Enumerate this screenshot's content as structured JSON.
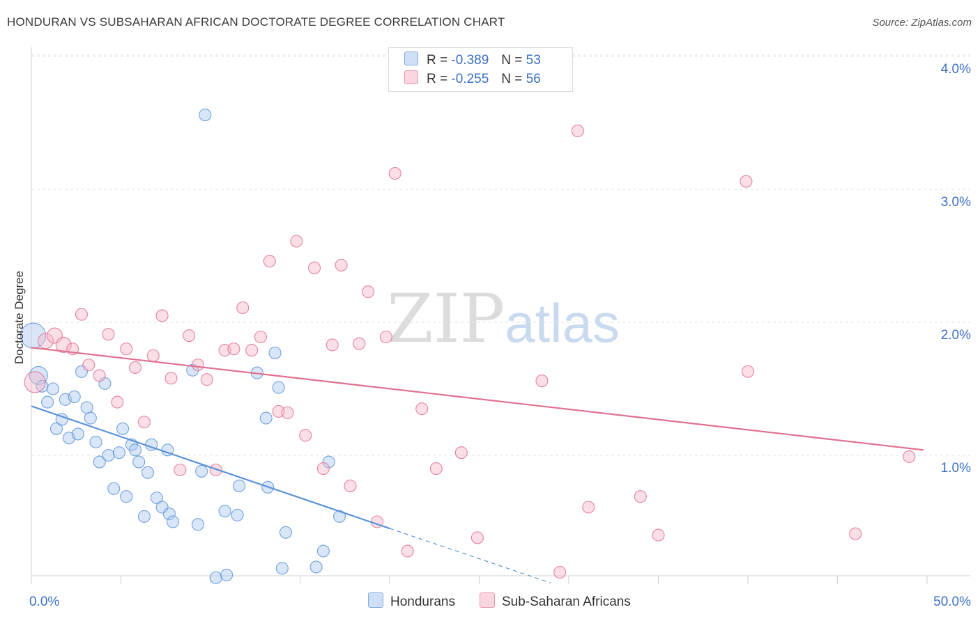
{
  "title": "HONDURAN VS SUBSAHARAN AFRICAN DOCTORATE DEGREE CORRELATION CHART",
  "source": "Source: ZipAtlas.com",
  "watermark": {
    "zip": "ZIP",
    "atlas": "atlas"
  },
  "legend": {
    "rows": [
      {
        "r_label": "R =",
        "r_value": "-0.389",
        "n_label": "N =",
        "n_value": "53",
        "color": "#a9c8ee"
      },
      {
        "r_label": "R =",
        "r_value": "-0.255",
        "n_label": "N =",
        "n_value": "56",
        "color": "#f5b8c9"
      }
    ]
  },
  "chart_data": {
    "type": "scatter",
    "title": "HONDURAN VS SUBSAHARAN AFRICAN DOCTORATE DEGREE CORRELATION CHART",
    "xlabel": "",
    "ylabel": "Doctorate Degree",
    "xlim": [
      0,
      50
    ],
    "ylim": [
      0,
      4.2
    ],
    "x_ticks_labels": [
      "0.0%",
      "50.0%"
    ],
    "y_ticks": [
      1,
      2,
      3,
      4
    ],
    "y_tick_labels": [
      "1.0%",
      "2.0%",
      "3.0%",
      "4.0%"
    ],
    "grid": true,
    "legend_placement": "top-center",
    "series": [
      {
        "name": "Hondurans",
        "color": "#5b93d8",
        "fill": "#a9c8ee",
        "trend": {
          "x": [
            0,
            20
          ],
          "y": [
            1.37,
            0.45
          ],
          "dashed_to": [
            29,
            0.04
          ]
        },
        "points": [
          [
            0.1,
            1.9
          ],
          [
            0.4,
            1.6
          ],
          [
            0.6,
            1.52
          ],
          [
            1.2,
            1.5
          ],
          [
            0.9,
            1.4
          ],
          [
            1.4,
            1.2
          ],
          [
            1.7,
            1.27
          ],
          [
            1.9,
            1.42
          ],
          [
            2.1,
            1.13
          ],
          [
            2.4,
            1.44
          ],
          [
            2.6,
            1.16
          ],
          [
            2.8,
            1.63
          ],
          [
            3.1,
            1.36
          ],
          [
            3.3,
            1.28
          ],
          [
            3.6,
            1.1
          ],
          [
            3.8,
            0.95
          ],
          [
            4.1,
            1.54
          ],
          [
            4.3,
            1.0
          ],
          [
            4.6,
            0.75
          ],
          [
            4.9,
            1.02
          ],
          [
            5.1,
            1.2
          ],
          [
            5.3,
            0.69
          ],
          [
            5.6,
            1.08
          ],
          [
            5.8,
            1.04
          ],
          [
            6.0,
            0.95
          ],
          [
            6.3,
            0.54
          ],
          [
            6.5,
            0.87
          ],
          [
            6.7,
            1.08
          ],
          [
            7.0,
            0.68
          ],
          [
            7.3,
            0.61
          ],
          [
            7.6,
            1.04
          ],
          [
            7.7,
            0.56
          ],
          [
            7.9,
            0.5
          ],
          [
            9.0,
            1.64
          ],
          [
            9.3,
            0.48
          ],
          [
            9.5,
            0.88
          ],
          [
            9.7,
            3.56
          ],
          [
            10.3,
            0.08
          ],
          [
            10.8,
            0.58
          ],
          [
            10.9,
            0.1
          ],
          [
            11.5,
            0.55
          ],
          [
            11.6,
            0.77
          ],
          [
            12.6,
            1.62
          ],
          [
            13.1,
            1.28
          ],
          [
            13.2,
            0.76
          ],
          [
            13.6,
            1.77
          ],
          [
            13.8,
            1.51
          ],
          [
            14.0,
            0.15
          ],
          [
            14.2,
            0.42
          ],
          [
            15.9,
            0.16
          ],
          [
            16.3,
            0.28
          ],
          [
            16.6,
            0.95
          ],
          [
            17.2,
            0.54
          ]
        ]
      },
      {
        "name": "Sub-Saharan Africans",
        "color": "#e0708f",
        "fill": "#f5b8c9",
        "trend": {
          "x": [
            0,
            49.8
          ],
          "y": [
            1.81,
            1.04
          ]
        },
        "points": [
          [
            0.2,
            1.55
          ],
          [
            0.8,
            1.86
          ],
          [
            1.3,
            1.9
          ],
          [
            1.8,
            1.83
          ],
          [
            2.3,
            1.8
          ],
          [
            2.8,
            2.06
          ],
          [
            3.2,
            1.68
          ],
          [
            3.8,
            1.6
          ],
          [
            4.3,
            1.91
          ],
          [
            4.8,
            1.4
          ],
          [
            5.3,
            1.8
          ],
          [
            5.8,
            1.66
          ],
          [
            6.3,
            1.25
          ],
          [
            6.8,
            1.75
          ],
          [
            7.3,
            2.05
          ],
          [
            7.8,
            1.58
          ],
          [
            8.3,
            0.89
          ],
          [
            8.8,
            1.9
          ],
          [
            9.3,
            1.68
          ],
          [
            9.8,
            1.57
          ],
          [
            10.3,
            0.89
          ],
          [
            10.8,
            1.79
          ],
          [
            11.3,
            1.8
          ],
          [
            11.8,
            2.11
          ],
          [
            12.3,
            1.79
          ],
          [
            12.8,
            1.89
          ],
          [
            13.3,
            2.46
          ],
          [
            13.8,
            1.33
          ],
          [
            14.3,
            1.32
          ],
          [
            14.8,
            2.61
          ],
          [
            15.3,
            1.15
          ],
          [
            15.8,
            2.41
          ],
          [
            16.3,
            0.9
          ],
          [
            16.8,
            1.83
          ],
          [
            17.3,
            2.43
          ],
          [
            17.8,
            0.77
          ],
          [
            18.3,
            1.84
          ],
          [
            18.8,
            2.23
          ],
          [
            19.3,
            0.5
          ],
          [
            19.8,
            1.89
          ],
          [
            20.3,
            3.12
          ],
          [
            21.0,
            0.28
          ],
          [
            21.8,
            1.35
          ],
          [
            22.6,
            0.9
          ],
          [
            24.0,
            1.02
          ],
          [
            24.9,
            0.38
          ],
          [
            28.5,
            1.56
          ],
          [
            29.5,
            0.12
          ],
          [
            30.5,
            3.44
          ],
          [
            31.1,
            0.61
          ],
          [
            34.0,
            0.69
          ],
          [
            35.0,
            0.4
          ],
          [
            39.9,
            3.06
          ],
          [
            40.0,
            1.63
          ],
          [
            46.0,
            0.41
          ],
          [
            49.0,
            0.99
          ]
        ]
      }
    ]
  }
}
